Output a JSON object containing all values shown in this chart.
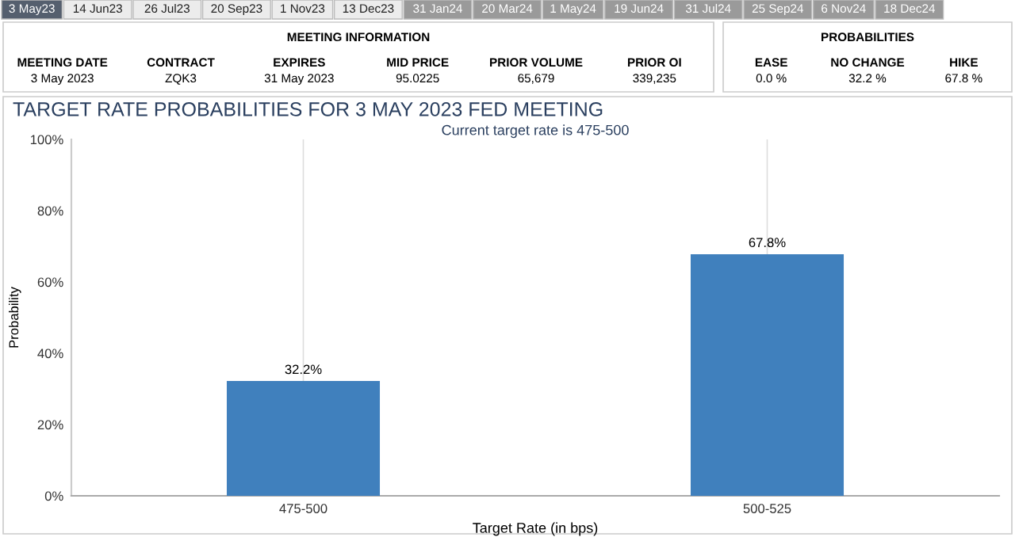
{
  "chart_data": [
    {
      "type": "other",
      "annotations": [
        "3 May23",
        "14 Jun23",
        "26 Jul23",
        "20 Sep23",
        "1 Nov23",
        "13 Dec23",
        "31 Jan24",
        "20 Mar24",
        "1 May24",
        "19 Jun24",
        "31 Jul24",
        "25 Sep24",
        "6 Nov24",
        "18 Dec24"
      ]
    },
    {
      "type": "other",
      "title": "MEETING INFORMATION",
      "annotations": [
        "MEETING DATE",
        "CONTRACT",
        "EXPIRES",
        "MID PRICE",
        "PRIOR VOLUME",
        "PRIOR OI",
        "3 May 2023",
        "ZQK3",
        "31 May 2023",
        "95.0225",
        "65,679",
        "339,235"
      ]
    },
    {
      "type": "other",
      "title": "PROBABILITIES",
      "annotations": [
        "EASE",
        "NO CHANGE",
        "HIKE",
        "0.0 %",
        "32.2 %",
        "67.8 %"
      ]
    },
    {
      "type": "bar",
      "title": "TARGET RATE PROBABILITIES FOR 3 MAY 2023 FED MEETING",
      "subtitle": "Current target rate is 475-500",
      "xlabel": "Target Rate (in bps)",
      "ylabel": "Probability",
      "categories": [
        "475-500",
        "500-525"
      ],
      "values": [
        32.2,
        67.8
      ],
      "value_labels": [
        "32.2%",
        "67.8%"
      ],
      "color": "#4080bd",
      "ylim": [
        0,
        100
      ],
      "yticks": [
        {
          "value": 0,
          "label": "0%"
        },
        {
          "value": 20,
          "label": "20%"
        },
        {
          "value": 40,
          "label": "40%"
        },
        {
          "value": 60,
          "label": "60%"
        },
        {
          "value": 80,
          "label": "80%"
        },
        {
          "value": 100,
          "label": "100%"
        }
      ],
      "grid": "x"
    }
  ]
}
